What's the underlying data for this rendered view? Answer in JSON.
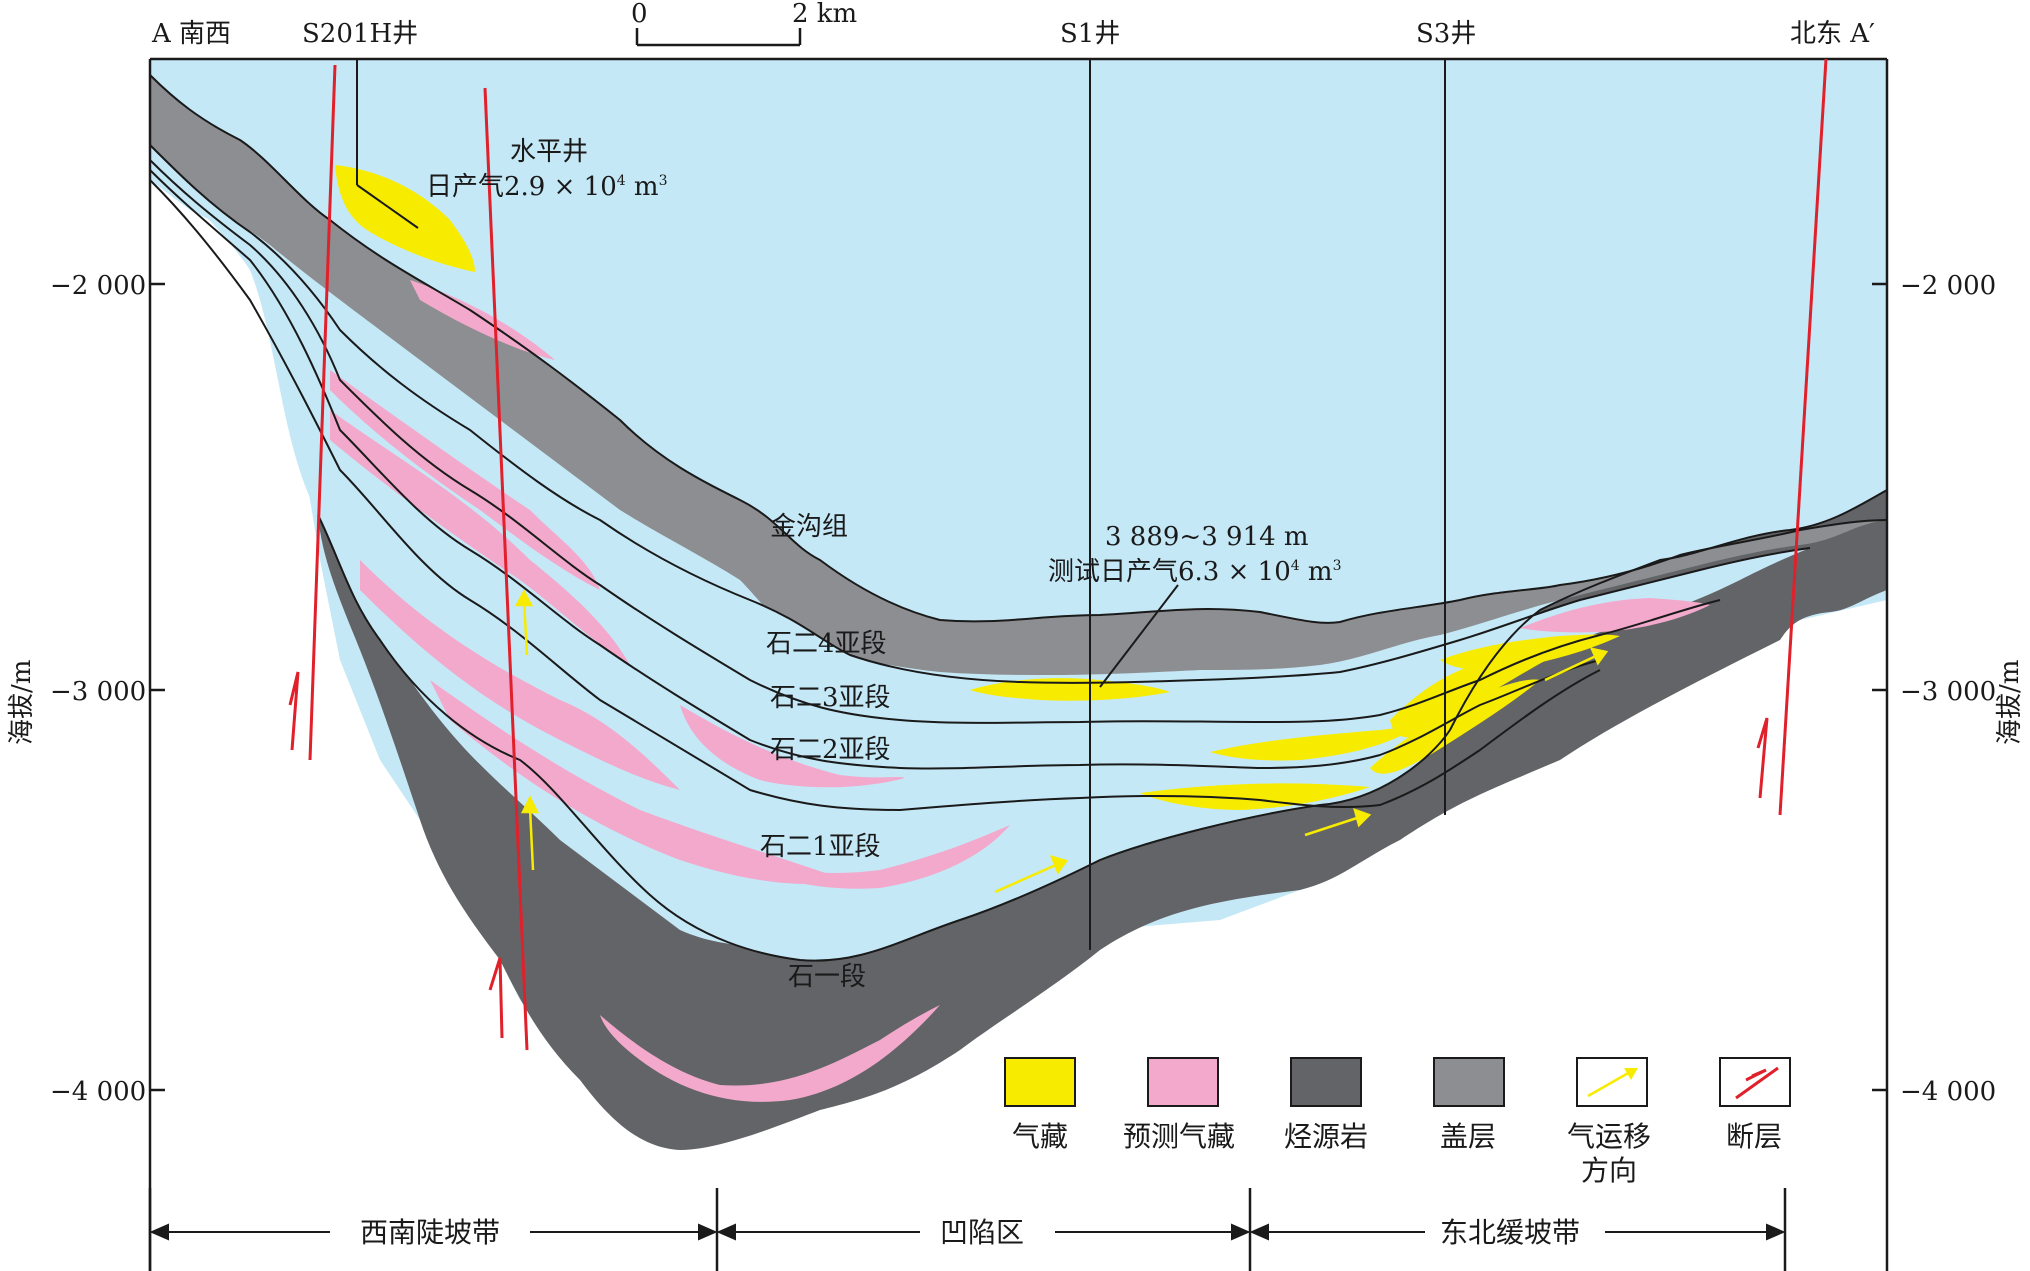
{
  "section": {
    "left_end": "A 南西",
    "right_end": "北东 A′",
    "wells": [
      "S201H井",
      "S1井",
      "S3井"
    ]
  },
  "scale_bar": {
    "start": "0",
    "end": "2 km"
  },
  "axis": {
    "left_title": "海拔/m",
    "right_title": "海拔/m",
    "ticks": [
      "−2 000",
      "−3 000",
      "−4 000"
    ]
  },
  "formations": {
    "jingou": "金沟组",
    "shi2_4": "石二4亚段",
    "shi2_3": "石二3亚段",
    "shi2_2": "石二2亚段",
    "shi2_1": "石二1亚段",
    "shi1": "石一段"
  },
  "annotations": {
    "horizontal_well": "水平井",
    "s201h_prod_prefix": "日产气2.9 × 10",
    "s201h_exp": "4",
    "s201h_unit": " m",
    "s201h_unit_exp": "3",
    "s1_interval": "3 889~3 914 m",
    "s1_test_prefix": "测试日产气6.3 × 10",
    "s1_exp": "4",
    "s1_unit": " m",
    "s1_unit_exp": "3"
  },
  "legend": [
    {
      "label": "气藏",
      "color": "#f7ec00"
    },
    {
      "label": "预测气藏",
      "color": "#f2a9cc"
    },
    {
      "label": "烃源岩",
      "color": "#636467"
    },
    {
      "label": "盖层",
      "color": "#8d8e91"
    },
    {
      "label": "气运移",
      "label2": "方向",
      "color": "#f7ec00"
    },
    {
      "label": "断层",
      "color": "#e0202a"
    }
  ],
  "zones": [
    "西南陡坡带",
    "凹陷区",
    "东北缓坡带"
  ],
  "colors": {
    "water_blue": "#c5e8f7",
    "gas": "#f7ec00",
    "predicted_gas": "#f2a9cc",
    "source_rock": "#636467",
    "cap_rock": "#8d8e91",
    "fault": "#e0202a"
  }
}
